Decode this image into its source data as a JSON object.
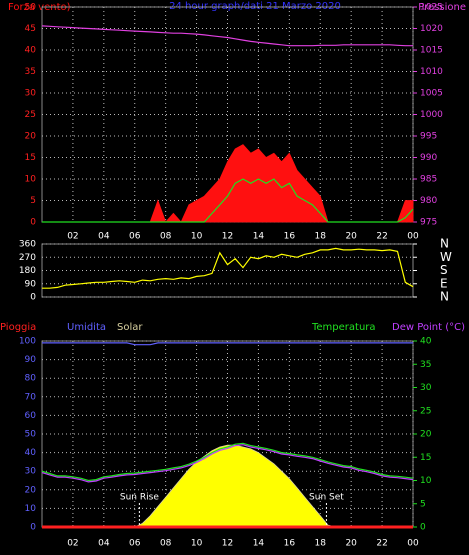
{
  "chart_data": [
    {
      "type": "line",
      "title": "24 hour graph/dati 21 Marzo 2020",
      "x": [
        0,
        0.5,
        1,
        1.5,
        2,
        2.5,
        3,
        3.5,
        4,
        4.5,
        5,
        5.5,
        6,
        6.5,
        7,
        7.5,
        8,
        8.5,
        9,
        9.5,
        10,
        10.5,
        11,
        11.5,
        12,
        12.5,
        13,
        13.5,
        14,
        14.5,
        15,
        15.5,
        16,
        16.5,
        17,
        17.5,
        18,
        18.5,
        19,
        19.5,
        20,
        20.5,
        21,
        21.5,
        22,
        22.5,
        23,
        23.5,
        24
      ],
      "xlim": [
        0,
        24
      ],
      "xticks": [
        {
          "value": 2,
          "label": "02"
        },
        {
          "value": 4,
          "label": "04"
        },
        {
          "value": 6,
          "label": "06"
        },
        {
          "value": 8,
          "label": "08"
        },
        10,
        12,
        14,
        16,
        18,
        20,
        22,
        {
          "value": 24,
          "label": "00"
        }
      ],
      "ylim": [
        0,
        50
      ],
      "yticks": [
        0,
        5,
        10,
        15,
        20,
        25,
        30,
        35,
        40,
        45,
        50
      ],
      "ytick_color": "#ff2020",
      "y2lim": [
        975,
        1025
      ],
      "y2ticks": [
        975,
        980,
        985,
        990,
        995,
        1000,
        1005,
        1010,
        1015,
        1020,
        1025
      ],
      "y2tick_color": "#e040e0",
      "grid": true,
      "series": [
        {
          "name": "Pressione",
          "color": "#e040e0",
          "axis": "y2",
          "style": "line",
          "values": [
            1020.6,
            1020.5,
            1020.4,
            1020.3,
            1020.2,
            1020.1,
            1020.0,
            1019.9,
            1019.8,
            1019.7,
            1019.6,
            1019.5,
            1019.4,
            1019.3,
            1019.2,
            1019.1,
            1019.0,
            1018.9,
            1018.9,
            1018.8,
            1018.7,
            1018.5,
            1018.3,
            1018.1,
            1017.9,
            1017.6,
            1017.3,
            1017.0,
            1016.8,
            1016.6,
            1016.4,
            1016.2,
            1016.0,
            1016.0,
            1016.0,
            1016.0,
            1016.1,
            1016.1,
            1016.1,
            1016.2,
            1016.2,
            1016.2,
            1016.2,
            1016.2,
            1016.2,
            1016.2,
            1016.1,
            1016.0,
            1016.0
          ]
        },
        {
          "name": "Forza vento)",
          "color": "#ff1010",
          "style": "area",
          "values": [
            0,
            0,
            0,
            0,
            0,
            0,
            0,
            0,
            0,
            0,
            0,
            0,
            0,
            0,
            0,
            5,
            0,
            2,
            0,
            4,
            5,
            6,
            8,
            10,
            14,
            17,
            18,
            16,
            17,
            15,
            16,
            14,
            16,
            12,
            10,
            8,
            6,
            0,
            0,
            0,
            0,
            0,
            0,
            0,
            0,
            0,
            0,
            5,
            5
          ]
        },
        {
          "color": "#20e020",
          "style": "line",
          "values": [
            0,
            0,
            0,
            0,
            0,
            0,
            0,
            0,
            0,
            0,
            0,
            0,
            0,
            0,
            0,
            0,
            0,
            0,
            0,
            0,
            0,
            0,
            2,
            4,
            6,
            9,
            10,
            9,
            10,
            9,
            10,
            8,
            9,
            6,
            5,
            4,
            2,
            0,
            0,
            0,
            0,
            0,
            0,
            0,
            0,
            0,
            0,
            1,
            3
          ]
        }
      ]
    },
    {
      "type": "line",
      "x": [
        0,
        0.5,
        1,
        1.5,
        2,
        2.5,
        3,
        3.5,
        4,
        4.5,
        5,
        5.5,
        6,
        6.5,
        7,
        7.5,
        8,
        8.5,
        9,
        9.5,
        10,
        10.5,
        11,
        11.5,
        12,
        12.5,
        13,
        13.5,
        14,
        14.5,
        15,
        15.5,
        16,
        16.5,
        17,
        17.5,
        18,
        18.5,
        19,
        19.5,
        20,
        20.5,
        21,
        21.5,
        22,
        22.5,
        23,
        23.5,
        24
      ],
      "xlim": [
        0,
        24
      ],
      "ylim": [
        0,
        360
      ],
      "yticks": [
        0,
        90,
        180,
        270,
        360
      ],
      "ytick_color": "#ffffff",
      "y2lim": [
        0,
        360
      ],
      "y2ticks": [
        {
          "value": 0,
          "label": "N"
        },
        {
          "value": 90,
          "label": "E"
        },
        {
          "value": 180,
          "label": "S"
        },
        {
          "value": 270,
          "label": "W"
        },
        {
          "value": 360,
          "label": "N"
        }
      ],
      "y2tick_color": "#ffffff",
      "grid": true,
      "series": [
        {
          "color": "#ffff00",
          "style": "line",
          "values": [
            60,
            60,
            65,
            80,
            85,
            90,
            95,
            100,
            100,
            105,
            110,
            105,
            100,
            115,
            110,
            120,
            125,
            120,
            130,
            125,
            140,
            145,
            160,
            300,
            220,
            260,
            200,
            270,
            260,
            280,
            270,
            290,
            280,
            270,
            290,
            300,
            320,
            320,
            330,
            320,
            320,
            325,
            320,
            320,
            315,
            320,
            310,
            100,
            70
          ]
        }
      ]
    },
    {
      "type": "line",
      "x": [
        0,
        0.5,
        1,
        1.5,
        2,
        2.5,
        3,
        3.5,
        4,
        4.5,
        5,
        5.5,
        6,
        6.5,
        7,
        7.5,
        8,
        8.5,
        9,
        9.5,
        10,
        10.5,
        11,
        11.5,
        12,
        12.5,
        13,
        13.5,
        14,
        14.5,
        15,
        15.5,
        16,
        16.5,
        17,
        17.5,
        18,
        18.5,
        19,
        19.5,
        20,
        20.5,
        21,
        21.5,
        22,
        22.5,
        23,
        23.5,
        24
      ],
      "xlim": [
        0,
        24
      ],
      "xticks": [
        {
          "value": 2,
          "label": "02"
        },
        {
          "value": 4,
          "label": "04"
        },
        {
          "value": 6,
          "label": "06"
        },
        {
          "value": 8,
          "label": "08"
        },
        10,
        12,
        14,
        16,
        18,
        20,
        22,
        {
          "value": 24,
          "label": "00"
        }
      ],
      "ylim": [
        0,
        100
      ],
      "yticks": [
        0,
        10,
        20,
        30,
        40,
        50,
        60,
        70,
        80,
        90,
        100
      ],
      "ytick_color": "#6060ff",
      "y2lim": [
        0,
        40
      ],
      "y2ticks": [
        0,
        5,
        10,
        15,
        20,
        25,
        30,
        35,
        40
      ],
      "y2tick_color": "#20e020",
      "grid": true,
      "annotations": [
        {
          "text": "Sun Rise",
          "x": 6.3
        },
        {
          "text": "Sun Set",
          "x": 18.4
        }
      ],
      "series": [
        {
          "name": "Solar",
          "color": "#d8d0a0",
          "fill": "#ffff00",
          "style": "area",
          "values": [
            0,
            0,
            0,
            0,
            0,
            0,
            0,
            0,
            0,
            0,
            0,
            0,
            0,
            2,
            6,
            11,
            16,
            21,
            26,
            31,
            35,
            38,
            41,
            43,
            44,
            44,
            43,
            42,
            40,
            37,
            34,
            30,
            26,
            21,
            16,
            11,
            6,
            1,
            0,
            0,
            0,
            0,
            0,
            0,
            0,
            0,
            0,
            0,
            0
          ]
        },
        {
          "name": "Pioggia",
          "color": "#ff2020",
          "style": "line",
          "values": [
            0,
            0,
            0,
            0,
            0,
            0,
            0,
            0,
            0,
            0,
            0,
            0,
            0,
            0,
            0,
            0,
            0,
            0,
            0,
            0,
            0,
            0,
            0,
            0,
            0,
            0,
            0,
            0,
            0,
            0,
            0,
            0,
            0,
            0,
            0,
            0,
            0,
            0,
            0,
            0,
            0,
            0,
            0,
            0,
            0,
            0,
            0,
            0,
            0
          ]
        },
        {
          "name": "Umidita",
          "color": "#6060ff",
          "style": "line",
          "values": [
            99,
            99,
            99,
            99,
            99,
            99,
            99,
            99,
            99,
            99,
            99,
            99,
            98,
            98,
            98,
            99,
            99,
            99,
            99,
            99,
            99,
            99,
            99,
            99,
            99,
            99,
            99,
            99,
            99,
            99,
            99,
            99,
            99,
            99,
            99,
            99,
            99,
            99,
            99,
            99,
            99,
            99,
            99,
            99,
            99,
            99,
            99,
            99,
            99
          ]
        },
        {
          "name": "Temperatura",
          "color": "#20e020",
          "axis": "y2",
          "style": "line",
          "values": [
            12,
            11.5,
            11,
            11,
            10.8,
            10.5,
            10,
            10.2,
            10.8,
            11,
            11.3,
            11.5,
            11.6,
            11.8,
            12,
            12.2,
            12.4,
            12.7,
            13,
            13.5,
            14.2,
            15,
            16,
            16.8,
            17.2,
            17.8,
            18,
            17.5,
            17.2,
            16.9,
            16.5,
            16,
            15.8,
            15.5,
            15.3,
            15,
            14.5,
            14,
            13.6,
            13.2,
            13,
            12.5,
            12.2,
            11.8,
            11.3,
            11,
            10.9,
            10.7,
            10.5
          ]
        },
        {
          "name": "Dew Point (°C)",
          "color": "#c040ff",
          "axis": "y2",
          "style": "line",
          "values": [
            11.7,
            11.2,
            10.7,
            10.7,
            10.5,
            10.2,
            9.7,
            9.9,
            10.5,
            10.7,
            11,
            11.2,
            11.3,
            11.5,
            11.7,
            11.9,
            12.1,
            12.4,
            12.7,
            13.2,
            13.9,
            14.7,
            15.7,
            16.5,
            16.9,
            17.5,
            17.7,
            17.2,
            16.9,
            16.6,
            16.2,
            15.7,
            15.5,
            15.2,
            15,
            14.7,
            14.2,
            13.7,
            13.3,
            12.9,
            12.7,
            12.2,
            11.9,
            11.5,
            11,
            10.7,
            10.6,
            10.4,
            10.2
          ]
        }
      ]
    }
  ]
}
